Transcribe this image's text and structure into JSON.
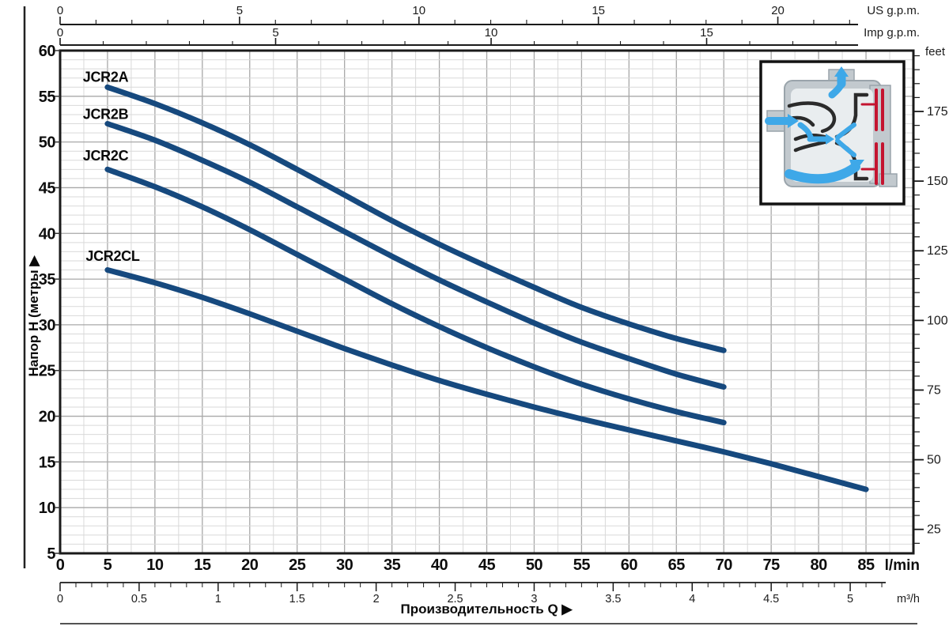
{
  "page": {
    "x_axis_title": "Производительность Q  ▶",
    "y_axis_title": "Напор H (метры  ▶"
  },
  "chart_data": {
    "type": "line",
    "title": "Производительность Q",
    "xlabel": "Производительность Q (l/min, m³/h, US g.p.m., Imp g.p.m.)",
    "ylabel": "Напор H (метры / feet)",
    "plot": {
      "q_max": 90,
      "h_min": 5,
      "h_max": 60,
      "grid_minor_q": 2.5,
      "grid_major_q": 5,
      "grid_minor_h": 1,
      "grid_major_h": 5,
      "grid_on": true,
      "series_color": "#16497E",
      "grid_minor_color": "#d9d9d9",
      "grid_major_color": "#a8a8a8",
      "border_color": "#1a1a1a"
    },
    "x_axes": {
      "us_gpm": {
        "unit": "US g.p.m.",
        "l_min_per_unit": 3.785,
        "labels": [
          0,
          5,
          10,
          15,
          20
        ],
        "minor_max": 22
      },
      "imp_gpm": {
        "unit": "Imp g.p.m.",
        "l_min_per_unit": 4.546,
        "labels": [
          0,
          5,
          10,
          15
        ],
        "minor_max": 18
      },
      "l_min": {
        "unit": "l/min",
        "labels": [
          0,
          5,
          10,
          15,
          20,
          25,
          30,
          35,
          40,
          45,
          50,
          55,
          60,
          65,
          70,
          75,
          80,
          85
        ]
      },
      "m3_h": {
        "unit": "m³/h",
        "l_min_per_unit": 16.6667,
        "labels": [
          "0",
          "0.5",
          "1",
          "1.5",
          "2",
          "2.5",
          "3",
          "3.5",
          "4",
          "4.5",
          "5"
        ],
        "label_values": [
          0,
          0.5,
          1,
          1.5,
          2,
          2.5,
          3,
          3.5,
          4,
          4.5,
          5
        ],
        "minor_step": 0.1,
        "minor_max": 5.2
      }
    },
    "y_axis_left": {
      "unit": "метры",
      "labels": [
        60,
        55,
        50,
        45,
        40,
        35,
        30,
        25,
        20,
        15,
        10,
        5
      ]
    },
    "y_axis_right": {
      "unit": "feet",
      "m_per_foot": 0.3048,
      "labels": [
        175,
        150,
        125,
        100,
        75,
        50,
        25
      ],
      "minor_step_ft": 5,
      "minor_min_ft": 20,
      "minor_max_ft": 195,
      "major_step_ft": 25
    },
    "series": [
      {
        "name": "JCR2A",
        "label_anchor_qh": [
          2.4,
          56.6
        ],
        "points": [
          [
            5,
            56
          ],
          [
            10,
            54.2
          ],
          [
            15,
            52.1
          ],
          [
            20,
            49.7
          ],
          [
            25,
            47.0
          ],
          [
            30,
            44.2
          ],
          [
            35,
            41.4
          ],
          [
            40,
            38.8
          ],
          [
            45,
            36.4
          ],
          [
            50,
            34.1
          ],
          [
            55,
            31.9
          ],
          [
            60,
            30.1
          ],
          [
            65,
            28.5
          ],
          [
            70,
            27.2
          ]
        ]
      },
      {
        "name": "JCR2B",
        "label_anchor_qh": [
          2.4,
          52.5
        ],
        "points": [
          [
            5,
            52
          ],
          [
            10,
            50.2
          ],
          [
            15,
            48.0
          ],
          [
            20,
            45.6
          ],
          [
            25,
            42.9
          ],
          [
            30,
            40.2
          ],
          [
            35,
            37.5
          ],
          [
            40,
            34.9
          ],
          [
            45,
            32.5
          ],
          [
            50,
            30.2
          ],
          [
            55,
            28.1
          ],
          [
            60,
            26.3
          ],
          [
            65,
            24.6
          ],
          [
            70,
            23.2
          ]
        ]
      },
      {
        "name": "JCR2C",
        "label_anchor_qh": [
          2.4,
          48.0
        ],
        "points": [
          [
            5,
            47
          ],
          [
            10,
            45.1
          ],
          [
            15,
            42.9
          ],
          [
            20,
            40.4
          ],
          [
            25,
            37.7
          ],
          [
            30,
            35.0
          ],
          [
            35,
            32.3
          ],
          [
            40,
            29.8
          ],
          [
            45,
            27.5
          ],
          [
            50,
            25.4
          ],
          [
            55,
            23.5
          ],
          [
            60,
            21.9
          ],
          [
            65,
            20.5
          ],
          [
            70,
            19.3
          ]
        ]
      },
      {
        "name": "JCR2CL",
        "label_anchor_qh": [
          2.7,
          37.0
        ],
        "points": [
          [
            5,
            36
          ],
          [
            10,
            34.6
          ],
          [
            15,
            33.0
          ],
          [
            20,
            31.2
          ],
          [
            25,
            29.3
          ],
          [
            30,
            27.4
          ],
          [
            35,
            25.6
          ],
          [
            40,
            23.9
          ],
          [
            45,
            22.4
          ],
          [
            50,
            21.0
          ],
          [
            55,
            19.7
          ],
          [
            60,
            18.5
          ],
          [
            65,
            17.3
          ],
          [
            70,
            16.1
          ],
          [
            75,
            14.8
          ],
          [
            80,
            13.4
          ],
          [
            85,
            12.0
          ]
        ]
      }
    ],
    "legend_position": "on-curve-labels"
  }
}
